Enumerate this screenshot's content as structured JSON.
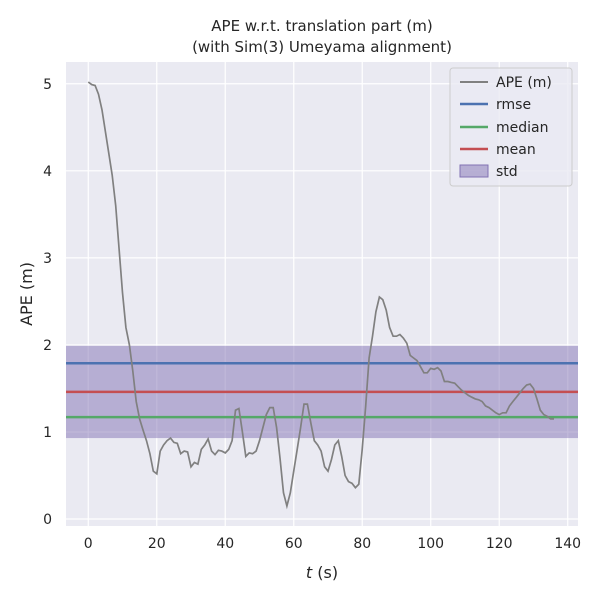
{
  "chart_data": {
    "type": "line",
    "title_lines": [
      "APE w.r.t. translation part (m)",
      "(with Sim(3) Umeyama alignment)"
    ],
    "xlabel_var": "t",
    "xlabel_unit": " (s)",
    "ylabel": "APE (m)",
    "xlim": [
      -6.5,
      143
    ],
    "ylim": [
      -0.08,
      5.25
    ],
    "xticks": [
      0,
      20,
      40,
      60,
      80,
      100,
      120,
      140
    ],
    "yticks": [
      0,
      1,
      2,
      3,
      4,
      5
    ],
    "grid": true,
    "legend_position": "top-right",
    "stats": {
      "rmse": 1.79,
      "median": 1.17,
      "mean": 1.46,
      "std_low": 0.93,
      "std_high": 1.99
    },
    "series": [
      {
        "name": "APE (m)",
        "color": "#808080",
        "x": [
          0,
          1,
          2,
          3,
          4,
          5,
          6,
          7,
          8,
          9,
          10,
          11,
          12,
          13,
          14,
          15,
          16,
          17,
          18,
          19,
          20,
          21,
          22,
          23,
          24,
          25,
          26,
          27,
          28,
          29,
          30,
          31,
          32,
          33,
          34,
          35,
          36,
          37,
          38,
          39,
          40,
          41,
          42,
          43,
          44,
          45,
          46,
          47,
          48,
          49,
          50,
          51,
          52,
          53,
          54,
          55,
          56,
          57,
          58,
          59,
          60,
          61,
          62,
          63,
          64,
          65,
          66,
          67,
          68,
          69,
          70,
          71,
          72,
          73,
          74,
          75,
          76,
          77,
          78,
          79,
          80,
          81,
          82,
          83,
          84,
          85,
          86,
          87,
          88,
          89,
          90,
          91,
          92,
          93,
          94,
          95,
          96,
          97,
          98,
          99,
          100,
          101,
          102,
          103,
          104,
          105,
          106,
          107,
          108,
          109,
          110,
          111,
          112,
          113,
          114,
          115,
          116,
          117,
          118,
          119,
          120,
          121,
          122,
          123,
          124,
          125,
          126,
          127,
          128,
          129,
          130,
          131,
          132,
          133,
          134,
          135,
          136
        ],
        "values": [
          5.02,
          4.99,
          4.98,
          4.88,
          4.7,
          4.45,
          4.2,
          3.95,
          3.6,
          3.1,
          2.6,
          2.2,
          2.0,
          1.7,
          1.35,
          1.15,
          1.02,
          0.9,
          0.75,
          0.55,
          0.52,
          0.78,
          0.85,
          0.9,
          0.93,
          0.88,
          0.87,
          0.75,
          0.78,
          0.77,
          0.6,
          0.65,
          0.63,
          0.8,
          0.85,
          0.92,
          0.78,
          0.74,
          0.79,
          0.78,
          0.76,
          0.8,
          0.9,
          1.25,
          1.27,
          1.0,
          0.72,
          0.76,
          0.75,
          0.78,
          0.9,
          1.05,
          1.2,
          1.28,
          1.28,
          1.05,
          0.7,
          0.3,
          0.15,
          0.3,
          0.55,
          0.8,
          1.05,
          1.32,
          1.32,
          1.1,
          0.9,
          0.85,
          0.78,
          0.6,
          0.55,
          0.68,
          0.85,
          0.9,
          0.72,
          0.5,
          0.43,
          0.41,
          0.36,
          0.4,
          0.8,
          1.3,
          1.85,
          2.1,
          2.38,
          2.55,
          2.52,
          2.4,
          2.2,
          2.1,
          2.1,
          2.12,
          2.08,
          2.02,
          1.88,
          1.85,
          1.82,
          1.75,
          1.68,
          1.68,
          1.73,
          1.72,
          1.74,
          1.7,
          1.58,
          1.58,
          1.57,
          1.56,
          1.52,
          1.48,
          1.45,
          1.42,
          1.4,
          1.38,
          1.37,
          1.35,
          1.3,
          1.28,
          1.25,
          1.22,
          1.2,
          1.22,
          1.22,
          1.3,
          1.35,
          1.4,
          1.45,
          1.5,
          1.54,
          1.55,
          1.5,
          1.38,
          1.25,
          1.2,
          1.18,
          1.15,
          1.15
        ]
      },
      {
        "name": "rmse",
        "color": "#4c72b0"
      },
      {
        "name": "median",
        "color": "#55a868"
      },
      {
        "name": "mean",
        "color": "#c44e52"
      },
      {
        "name": "std",
        "color": "#8172b3"
      }
    ]
  }
}
